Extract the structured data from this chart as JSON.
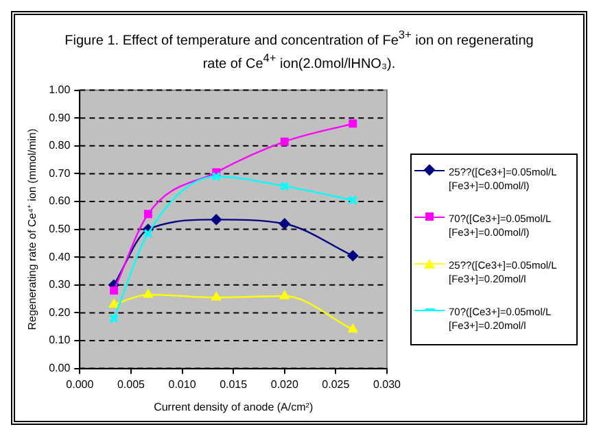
{
  "chart_data": {
    "type": "line",
    "title": "Figure 1.  Effect of temperature and concentration of Fe$^{3+}$ ion on regenerating rate of Ce$^{4+}$ ion(2.0mol/lHNO₃).",
    "xlabel": "Current density of anode (A/cm²)",
    "ylabel": "Regenerating rate of Ce⁴⁺ ion (mmol/min)",
    "x": [
      0.00333,
      0.00667,
      0.01333,
      0.02,
      0.02667
    ],
    "series": [
      {
        "name": "25??([Ce3+]=0.05mol/L [Fe3+]=0.00mol/l)",
        "color": "#000080",
        "marker": "diamond",
        "values": [
          0.3,
          0.5,
          0.535,
          0.52,
          0.405
        ]
      },
      {
        "name": "70?([Ce3+]=0.05mol/L [Fe3+]=0.00mol/l)",
        "color": "#ff00ff",
        "marker": "square",
        "values": [
          0.28,
          0.555,
          0.705,
          0.815,
          0.88
        ]
      },
      {
        "name": "25??([Ce3+]=0.05mol/L [Fe3+]=0.20mol/l",
        "color": "#ffff00",
        "marker": "triangle",
        "values": [
          0.23,
          0.265,
          0.255,
          0.26,
          0.14
        ]
      },
      {
        "name": "70?([Ce3+]=0.05mol/L [Fe3+]=0.20mol/l",
        "color": "#00ffff",
        "marker": "cross",
        "values": [
          0.18,
          0.485,
          0.69,
          0.655,
          0.605
        ]
      }
    ],
    "xlim": [
      0,
      0.03
    ],
    "xticks": [
      {
        "value": 0,
        "label": "0.000"
      },
      {
        "value": 0.005,
        "label": "0.005"
      },
      {
        "value": 0.01,
        "label": "0.010"
      },
      {
        "value": 0.015,
        "label": "0.015"
      },
      {
        "value": 0.02,
        "label": "0.020"
      },
      {
        "value": 0.025,
        "label": "0.025"
      },
      {
        "value": 0.03,
        "label": "0.030"
      }
    ],
    "ylim": [
      0,
      1
    ],
    "yticks": [
      {
        "value": 0,
        "label": "0.00"
      },
      {
        "value": 0.1,
        "label": "0.10"
      },
      {
        "value": 0.2,
        "label": "0.20"
      },
      {
        "value": 0.3,
        "label": "0.30"
      },
      {
        "value": 0.4,
        "label": "0.40"
      },
      {
        "value": 0.5,
        "label": "0.50"
      },
      {
        "value": 0.6,
        "label": "0.60"
      },
      {
        "value": 0.7,
        "label": "0.70"
      },
      {
        "value": 0.8,
        "label": "0.80"
      },
      {
        "value": 0.9,
        "label": "0.90"
      },
      {
        "value": 1,
        "label": "1.00"
      }
    ],
    "grid": "y",
    "legend": "right"
  }
}
